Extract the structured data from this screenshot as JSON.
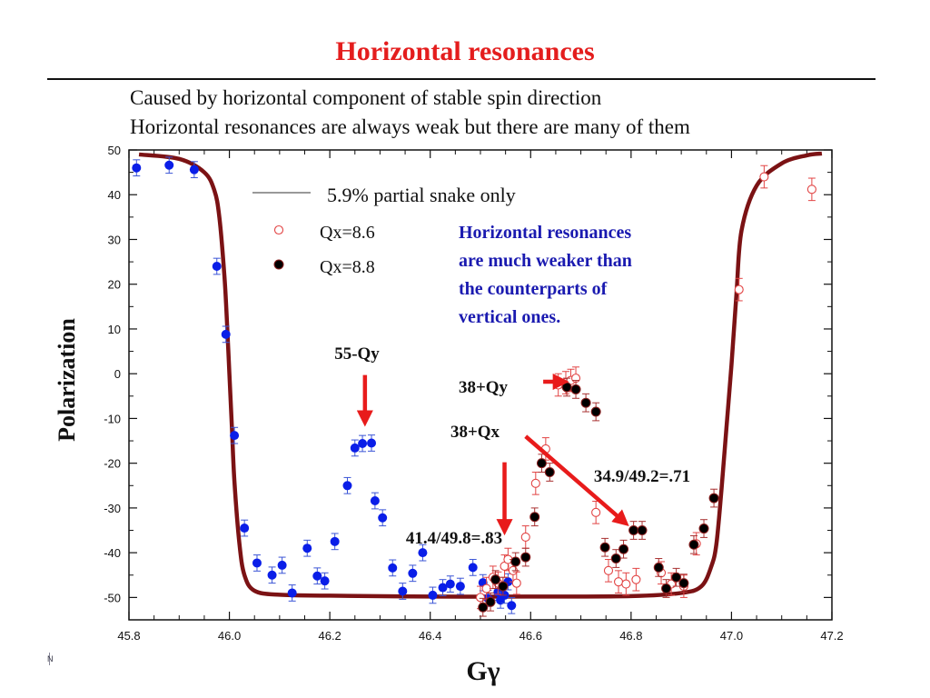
{
  "slide": {
    "title": "Horizontal resonances",
    "subtitle_lines": [
      "Caused by horizontal component of stable spin direction",
      "Horizontal resonances are always weak but there are many of them"
    ],
    "corner_mark": "N"
  },
  "colors": {
    "title": "#e41d1d",
    "curve": "#7b1214",
    "blue_points": "#0a1ee8",
    "error_bars": "#3b55d6",
    "open_points": "#e24444",
    "filled_points": "#000000",
    "callout_text": "#1a1ab0",
    "arrows": "#e81b1b"
  },
  "chart_data": {
    "type": "scatter",
    "xlabel": "Gγ",
    "ylabel": "Polarization",
    "xlim": [
      45.8,
      47.2
    ],
    "ylim": [
      -55,
      50
    ],
    "x_ticks": [
      "45.8",
      "46.0",
      "46.2",
      "46.4",
      "46.6",
      "46.8",
      "47.0",
      "47.2"
    ],
    "y_ticks": [
      "50",
      "40",
      "30",
      "20",
      "10",
      "0",
      "-10",
      "-20",
      "-30",
      "-40",
      "-50"
    ],
    "legend": {
      "curve_label": "5.9% partial snake only",
      "open_label": "Qx=8.6",
      "filled_label": "Qx=8.8"
    },
    "curve": {
      "x": [
        45.82,
        45.9,
        45.95,
        45.97,
        45.98,
        45.99,
        45.995,
        46.0,
        46.005,
        46.01,
        46.02,
        46.03,
        46.05,
        46.1,
        46.2,
        46.4,
        46.6,
        46.8,
        46.9,
        46.94,
        46.96,
        46.97,
        46.98,
        46.99,
        47.0,
        47.01,
        47.02,
        47.05,
        47.1,
        47.15,
        47.18
      ],
      "y": [
        49,
        48,
        45,
        41,
        35,
        22,
        12,
        0,
        -12,
        -24,
        -38,
        -45,
        -48.5,
        -49.4,
        -49.6,
        -49.8,
        -49.8,
        -49.7,
        -49.0,
        -47.5,
        -43,
        -38,
        -26,
        -12,
        2,
        18,
        32,
        42,
        47,
        48.8,
        49.2
      ]
    },
    "series": [
      {
        "marker": "blue-filled",
        "points": [
          [
            45.815,
            46.0,
            1.8
          ],
          [
            45.88,
            46.6,
            1.8
          ],
          [
            45.93,
            45.6,
            1.8
          ],
          [
            45.975,
            24.0,
            1.8
          ],
          [
            45.993,
            8.8,
            1.8
          ],
          [
            46.01,
            -13.8,
            1.8
          ],
          [
            46.03,
            -34.5,
            1.8
          ],
          [
            46.055,
            -42.3,
            1.8
          ],
          [
            46.085,
            -45.0,
            1.8
          ],
          [
            46.105,
            -42.8,
            1.8
          ],
          [
            46.125,
            -49.0,
            1.8
          ],
          [
            46.155,
            -39.0,
            1.8
          ],
          [
            46.175,
            -45.2,
            1.8
          ],
          [
            46.19,
            -46.3,
            1.8
          ],
          [
            46.21,
            -37.5,
            1.8
          ],
          [
            46.235,
            -25.0,
            1.8
          ],
          [
            46.25,
            -16.6,
            1.8
          ],
          [
            46.265,
            -15.6,
            1.8
          ],
          [
            46.283,
            -15.5,
            1.8
          ],
          [
            46.29,
            -28.4,
            1.8
          ],
          [
            46.305,
            -32.2,
            1.8
          ],
          [
            46.325,
            -43.4,
            1.8
          ],
          [
            46.345,
            -48.6,
            1.8
          ],
          [
            46.365,
            -44.6,
            1.8
          ],
          [
            46.385,
            -40.0,
            1.8
          ],
          [
            46.405,
            -49.5,
            1.8
          ],
          [
            46.425,
            -47.8,
            1.8
          ],
          [
            46.44,
            -47.0,
            1.8
          ],
          [
            46.46,
            -47.5,
            1.8
          ],
          [
            46.485,
            -43.3,
            1.8
          ],
          [
            46.505,
            -46.7,
            1.8
          ],
          [
            46.515,
            -50.2,
            1.8
          ],
          [
            46.535,
            -48.8,
            1.8
          ],
          [
            46.54,
            -50.6,
            1.8
          ],
          [
            46.548,
            -49.5,
            1.8
          ],
          [
            46.555,
            -46.5,
            1.8
          ],
          [
            46.562,
            -51.8,
            1.8
          ]
        ]
      },
      {
        "name": "Qx=8.6",
        "marker": "open-circle",
        "points": [
          [
            46.5,
            -50.0,
            2.5
          ],
          [
            46.512,
            -48.0,
            2.5
          ],
          [
            46.525,
            -45.5,
            2.5
          ],
          [
            46.535,
            -46.8,
            2.5
          ],
          [
            46.548,
            -43.0,
            2.5
          ],
          [
            46.555,
            -41.5,
            2.5
          ],
          [
            46.565,
            -44.0,
            2.5
          ],
          [
            46.572,
            -46.8,
            2.5
          ],
          [
            46.59,
            -36.5,
            2.5
          ],
          [
            46.61,
            -24.5,
            2.5
          ],
          [
            46.63,
            -16.8,
            2.5
          ],
          [
            46.655,
            -2.5,
            2.5
          ],
          [
            46.67,
            -2.0,
            2.5
          ],
          [
            46.68,
            -1.5,
            2.5
          ],
          [
            46.69,
            -1.0,
            2.5
          ],
          [
            46.73,
            -31.0,
            2.5
          ],
          [
            46.755,
            -44.0,
            2.5
          ],
          [
            46.775,
            -46.5,
            2.5
          ],
          [
            46.79,
            -47.0,
            2.5
          ],
          [
            46.81,
            -46.0,
            2.5
          ],
          [
            46.86,
            -44.5,
            2.5
          ],
          [
            46.88,
            -47.0,
            2.5
          ],
          [
            46.905,
            -47.5,
            2.5
          ],
          [
            46.93,
            -38.0,
            2.5
          ],
          [
            47.015,
            18.8,
            2.5
          ],
          [
            47.065,
            44.0,
            2.5
          ],
          [
            47.16,
            41.2,
            2.5
          ]
        ]
      },
      {
        "name": "Qx=8.8",
        "marker": "filled-circle",
        "points": [
          [
            46.505,
            -52.2,
            2.0
          ],
          [
            46.52,
            -51.0,
            2.0
          ],
          [
            46.53,
            -46.0,
            2.0
          ],
          [
            46.545,
            -47.5,
            2.0
          ],
          [
            46.57,
            -42.0,
            2.0
          ],
          [
            46.59,
            -41.0,
            2.0
          ],
          [
            46.608,
            -32.0,
            2.0
          ],
          [
            46.622,
            -20.0,
            2.0
          ],
          [
            46.638,
            -22.0,
            2.0
          ],
          [
            46.672,
            -3.0,
            2.0
          ],
          [
            46.69,
            -3.5,
            2.0
          ],
          [
            46.71,
            -6.5,
            2.0
          ],
          [
            46.73,
            -8.5,
            2.0
          ],
          [
            46.748,
            -38.8,
            2.0
          ],
          [
            46.77,
            -41.3,
            2.0
          ],
          [
            46.785,
            -39.2,
            2.0
          ],
          [
            46.805,
            -35.0,
            2.0
          ],
          [
            46.822,
            -35.0,
            2.0
          ],
          [
            46.855,
            -43.3,
            2.0
          ],
          [
            46.87,
            -48.0,
            2.0
          ],
          [
            46.89,
            -45.5,
            2.0
          ],
          [
            46.905,
            -46.8,
            2.0
          ],
          [
            46.925,
            -38.2,
            2.0
          ],
          [
            46.945,
            -34.6,
            2.0
          ],
          [
            46.965,
            -27.8,
            2.0
          ]
        ]
      }
    ],
    "annotations": [
      {
        "text": "55-Qy",
        "arrow_from": [
          46.27,
          -0.3
        ],
        "arrow_to": [
          46.27,
          -10.2
        ]
      },
      {
        "text": "38+Qy",
        "arrow_from": [
          46.625,
          -1.8
        ],
        "arrow_to": [
          46.662,
          -1.8
        ]
      },
      {
        "text": "38+Qx",
        "arrow_from": [
          46.59,
          -14.0
        ],
        "arrow_to": [
          46.785,
          -33.0
        ]
      },
      {
        "text": "34.9/49.2=.71"
      },
      {
        "text": "41.4/49.8=.83",
        "arrow_from": [
          46.548,
          -19.8
        ],
        "arrow_to": [
          46.548,
          -34.5
        ]
      }
    ],
    "callout": [
      "Horizontal resonances",
      "are much weaker than",
      "the counterparts of",
      "vertical ones."
    ]
  }
}
